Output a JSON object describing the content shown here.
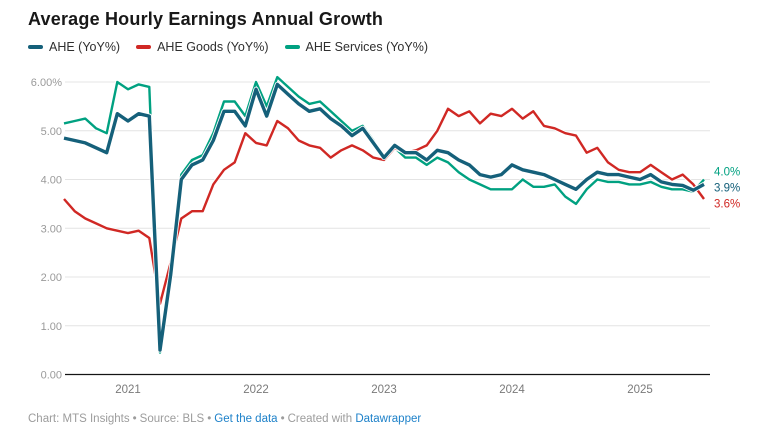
{
  "header": {
    "title": "Average Hourly Earnings Annual Growth"
  },
  "legend": [
    {
      "label": "AHE (YoY%)",
      "color": "#15607a"
    },
    {
      "label": "AHE Goods (YoY%)",
      "color": "#d02824"
    },
    {
      "label": "AHE Services (YoY%)",
      "color": "#00a181"
    }
  ],
  "chart_data": {
    "type": "line",
    "title": "Average Hourly Earnings Annual Growth",
    "xlabel": "",
    "ylabel": "",
    "unit": "%",
    "ylim": [
      0,
      6
    ],
    "grid": true,
    "legend_position": "top-left",
    "x": [
      "2020-07",
      "2020-08",
      "2020-09",
      "2020-10",
      "2020-11",
      "2020-12",
      "2021-01",
      "2021-02",
      "2021-03",
      "2021-04",
      "2021-05",
      "2021-06",
      "2021-07",
      "2021-08",
      "2021-09",
      "2021-10",
      "2021-11",
      "2021-12",
      "2022-01",
      "2022-02",
      "2022-03",
      "2022-04",
      "2022-05",
      "2022-06",
      "2022-07",
      "2022-08",
      "2022-09",
      "2022-10",
      "2022-11",
      "2022-12",
      "2023-01",
      "2023-02",
      "2023-03",
      "2023-04",
      "2023-05",
      "2023-06",
      "2023-07",
      "2023-08",
      "2023-09",
      "2023-10",
      "2023-11",
      "2023-12",
      "2024-01",
      "2024-02",
      "2024-03",
      "2024-04",
      "2024-05",
      "2024-06",
      "2024-07",
      "2024-08",
      "2024-09",
      "2024-10",
      "2024-11",
      "2024-12",
      "2025-01",
      "2025-02",
      "2025-03",
      "2025-04",
      "2025-05",
      "2025-06",
      "2025-07"
    ],
    "series": [
      {
        "name": "AHE (YoY%)",
        "color": "#15607a",
        "end_label": "3.9%",
        "values": [
          4.85,
          4.8,
          4.75,
          4.65,
          4.55,
          5.35,
          5.2,
          5.35,
          5.3,
          0.5,
          2.05,
          4.0,
          4.3,
          4.4,
          4.8,
          5.4,
          5.4,
          5.1,
          5.85,
          5.3,
          5.95,
          5.75,
          5.55,
          5.4,
          5.45,
          5.25,
          5.1,
          4.9,
          5.05,
          4.75,
          4.45,
          4.7,
          4.55,
          4.55,
          4.4,
          4.6,
          4.55,
          4.4,
          4.3,
          4.1,
          4.05,
          4.1,
          4.3,
          4.2,
          4.15,
          4.1,
          4.0,
          3.9,
          3.8,
          4.0,
          4.15,
          4.1,
          4.1,
          4.05,
          4.0,
          4.1,
          3.95,
          3.9,
          3.88,
          3.78,
          3.9
        ]
      },
      {
        "name": "AHE Goods (YoY%)",
        "color": "#d02824",
        "end_label": "3.6%",
        "values": [
          3.6,
          3.35,
          3.2,
          3.1,
          3.0,
          2.95,
          2.9,
          2.95,
          2.8,
          1.45,
          2.3,
          3.2,
          3.35,
          3.35,
          3.9,
          4.2,
          4.35,
          4.95,
          4.75,
          4.7,
          5.2,
          5.05,
          4.8,
          4.7,
          4.65,
          4.45,
          4.6,
          4.7,
          4.6,
          4.45,
          4.4,
          4.65,
          4.55,
          4.6,
          4.7,
          5.0,
          5.45,
          5.3,
          5.4,
          5.15,
          5.35,
          5.3,
          5.45,
          5.25,
          5.4,
          5.1,
          5.05,
          4.95,
          4.9,
          4.55,
          4.65,
          4.35,
          4.2,
          4.15,
          4.15,
          4.3,
          4.15,
          4.0,
          4.1,
          3.9,
          3.6
        ]
      },
      {
        "name": "AHE Services (YoY%)",
        "color": "#00a181",
        "end_label": "4.0%",
        "values": [
          5.15,
          5.2,
          5.25,
          5.05,
          4.95,
          6.0,
          5.85,
          5.95,
          5.9,
          0.45,
          2.0,
          4.1,
          4.4,
          4.5,
          4.95,
          5.6,
          5.6,
          5.3,
          6.0,
          5.5,
          6.1,
          5.9,
          5.7,
          5.55,
          5.6,
          5.4,
          5.2,
          5.0,
          5.1,
          4.8,
          4.4,
          4.65,
          4.45,
          4.45,
          4.3,
          4.45,
          4.35,
          4.15,
          4.0,
          3.9,
          3.8,
          3.8,
          3.8,
          4.0,
          3.85,
          3.85,
          3.9,
          3.65,
          3.5,
          3.8,
          4.0,
          3.95,
          3.95,
          3.9,
          3.9,
          3.95,
          3.85,
          3.8,
          3.8,
          3.75,
          4.0
        ]
      }
    ],
    "y_ticks": [
      {
        "value": 6,
        "label": "6.00%"
      },
      {
        "value": 5,
        "label": "5.00"
      },
      {
        "value": 4,
        "label": "4.00"
      },
      {
        "value": 3,
        "label": "3.00"
      },
      {
        "value": 2,
        "label": "2.00"
      },
      {
        "value": 1,
        "label": "1.00"
      },
      {
        "value": 0,
        "label": "0.00"
      }
    ],
    "x_ticks": [
      {
        "label": "2021",
        "month": "2021-01"
      },
      {
        "label": "2022",
        "month": "2022-01"
      },
      {
        "label": "2023",
        "month": "2023-01"
      },
      {
        "label": "2024",
        "month": "2024-01"
      },
      {
        "label": "2025",
        "month": "2025-01"
      }
    ]
  },
  "footer": {
    "chart_credit": "Chart: MTS Insights",
    "source": "Source: BLS",
    "get_data_label": "Get the data",
    "created_with": "Created with",
    "tool_label": "Datawrapper",
    "separator": "•"
  }
}
